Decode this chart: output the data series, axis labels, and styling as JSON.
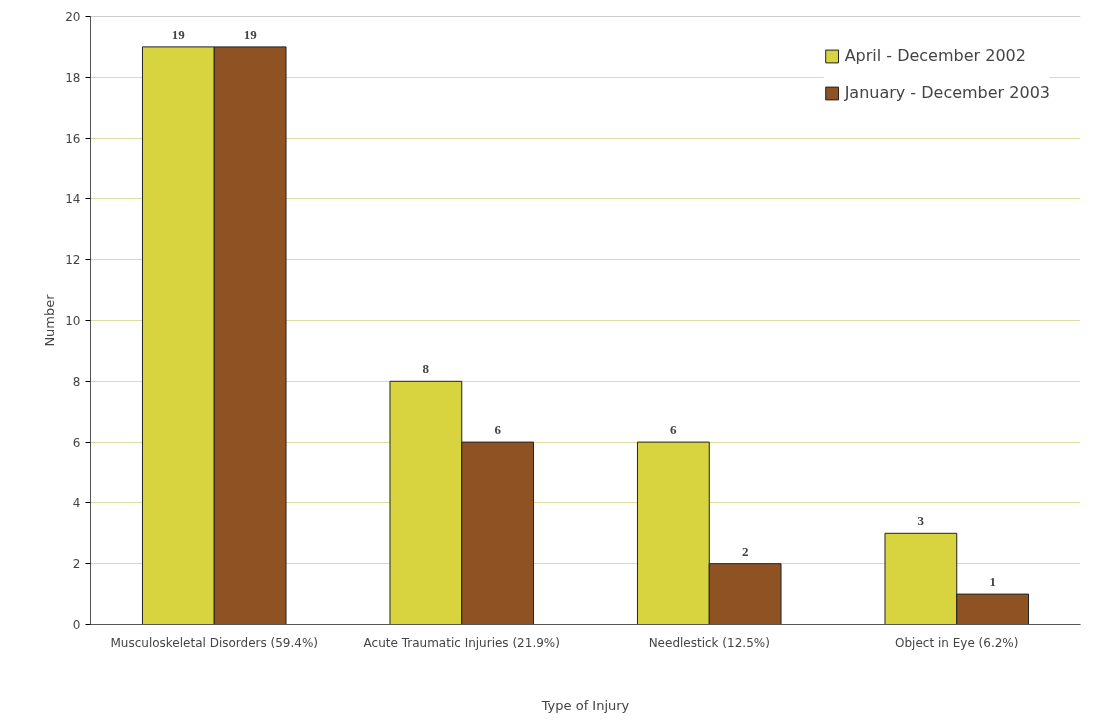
{
  "chart_data": {
    "type": "bar",
    "xlabel": "Type of Injury",
    "ylabel": "Number",
    "categories": [
      "Musculoskeletal Disorders (59.4%)",
      "Acute Traumatic Injuries (21.9%)",
      "Needlestick (12.5%)",
      "Object in Eye (6.2%)"
    ],
    "series": [
      {
        "name": "April - December 2002",
        "color": "#d8d43f",
        "values": [
          19,
          8,
          6,
          3
        ]
      },
      {
        "name": "January - December 2003",
        "color": "#8f5223",
        "values": [
          19,
          6,
          2,
          1
        ]
      }
    ],
    "ylim": [
      0,
      20
    ],
    "yticks": [
      0,
      2,
      4,
      6,
      8,
      10,
      12,
      14,
      16,
      18,
      20
    ],
    "grid": "y",
    "legend": "top right",
    "data_labels": true
  }
}
